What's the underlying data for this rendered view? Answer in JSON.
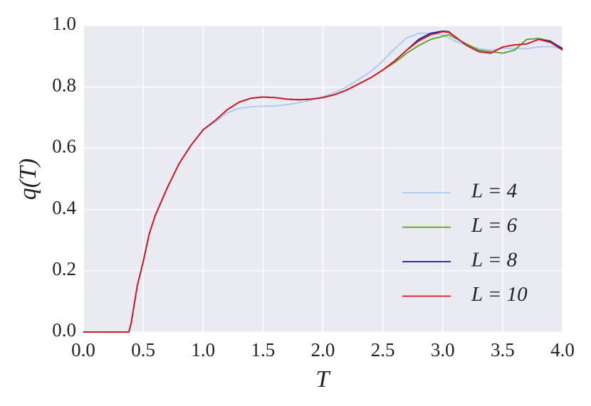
{
  "chart_data": {
    "type": "line",
    "xlabel": "T",
    "ylabel": "q(T)",
    "x": [
      0,
      0.38,
      0.4,
      0.45,
      0.5,
      0.55,
      0.6,
      0.7,
      0.8,
      0.9,
      1.0,
      1.1,
      1.2,
      1.3,
      1.4,
      1.5,
      1.6,
      1.7,
      1.8,
      1.9,
      2.0,
      2.1,
      2.2,
      2.3,
      2.4,
      2.5,
      2.6,
      2.7,
      2.8,
      2.9,
      3.0,
      3.05,
      3.1,
      3.2,
      3.3,
      3.4,
      3.5,
      3.6,
      3.7,
      3.8,
      3.9,
      4.0
    ],
    "series": [
      {
        "name": "L = 4",
        "color": "#a4cbf7",
        "values": [
          0,
          0,
          0.03,
          0.15,
          0.23,
          0.32,
          0.38,
          0.47,
          0.55,
          0.61,
          0.66,
          0.685,
          0.715,
          0.73,
          0.735,
          0.737,
          0.738,
          0.742,
          0.748,
          0.757,
          0.768,
          0.782,
          0.8,
          0.825,
          0.85,
          0.885,
          0.925,
          0.96,
          0.975,
          0.975,
          0.97,
          0.96,
          0.95,
          0.935,
          0.925,
          0.92,
          0.925,
          0.925,
          0.925,
          0.93,
          0.932,
          0.925
        ]
      },
      {
        "name": "L = 6",
        "color": "#5a9e1c",
        "values": [
          0,
          0,
          0.03,
          0.15,
          0.23,
          0.32,
          0.38,
          0.47,
          0.55,
          0.61,
          0.66,
          0.69,
          0.725,
          0.75,
          0.763,
          0.767,
          0.765,
          0.76,
          0.758,
          0.76,
          0.765,
          0.775,
          0.79,
          0.81,
          0.83,
          0.855,
          0.88,
          0.91,
          0.935,
          0.955,
          0.965,
          0.97,
          0.96,
          0.94,
          0.92,
          0.915,
          0.91,
          0.92,
          0.955,
          0.958,
          0.95,
          0.92
        ]
      },
      {
        "name": "L = 8",
        "color": "#1a1aa0",
        "values": [
          0,
          0,
          0.03,
          0.15,
          0.23,
          0.32,
          0.38,
          0.47,
          0.55,
          0.61,
          0.66,
          0.69,
          0.725,
          0.75,
          0.763,
          0.767,
          0.765,
          0.76,
          0.758,
          0.76,
          0.765,
          0.775,
          0.79,
          0.81,
          0.83,
          0.855,
          0.885,
          0.92,
          0.955,
          0.975,
          0.982,
          0.98,
          0.965,
          0.935,
          0.915,
          0.91,
          0.93,
          0.937,
          0.94,
          0.955,
          0.948,
          0.925
        ]
      },
      {
        "name": "L = 10",
        "color": "#e0141e",
        "values": [
          0,
          0,
          0.03,
          0.15,
          0.23,
          0.32,
          0.38,
          0.47,
          0.55,
          0.61,
          0.66,
          0.69,
          0.725,
          0.75,
          0.763,
          0.767,
          0.765,
          0.76,
          0.758,
          0.76,
          0.765,
          0.775,
          0.79,
          0.81,
          0.83,
          0.855,
          0.885,
          0.92,
          0.95,
          0.97,
          0.98,
          0.978,
          0.965,
          0.935,
          0.915,
          0.91,
          0.93,
          0.937,
          0.94,
          0.955,
          0.945,
          0.92
        ]
      }
    ],
    "xlim": [
      0,
      4
    ],
    "ylim": [
      0,
      1
    ],
    "xticks": [
      {
        "value": 0,
        "label": "0.0"
      },
      0.5,
      {
        "value": 1,
        "label": "1.0"
      },
      1.5,
      {
        "value": 2,
        "label": "2.0"
      },
      2.5,
      {
        "value": 3,
        "label": "3.0"
      },
      3.5,
      {
        "value": 4,
        "label": "4.0"
      }
    ],
    "yticks": [
      {
        "value": 0,
        "label": "0.0"
      },
      0.2,
      0.4,
      0.6,
      0.8,
      {
        "value": 1,
        "label": "1.0"
      }
    ],
    "grid": true,
    "legend": "lower right",
    "background": "#eaeaf2"
  }
}
